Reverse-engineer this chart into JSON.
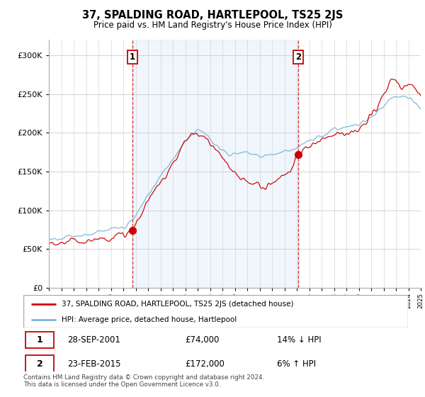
{
  "title": "37, SPALDING ROAD, HARTLEPOOL, TS25 2JS",
  "subtitle": "Price paid vs. HM Land Registry's House Price Index (HPI)",
  "legend_line1": "37, SPALDING ROAD, HARTLEPOOL, TS25 2JS (detached house)",
  "legend_line2": "HPI: Average price, detached house, Hartlepool",
  "footer": "Contains HM Land Registry data © Crown copyright and database right 2024.\nThis data is licensed under the Open Government Licence v3.0.",
  "table_rows": [
    [
      "1",
      "28-SEP-2001",
      "£74,000",
      "14% ↓ HPI"
    ],
    [
      "2",
      "23-FEB-2015",
      "£172,000",
      "6% ↑ HPI"
    ]
  ],
  "hpi_color": "#7ab4d8",
  "price_color": "#cc0000",
  "vline_color": "#cc0000",
  "shade_color": "#ddeeff",
  "ylim": [
    0,
    320000
  ],
  "yticks": [
    0,
    50000,
    100000,
    150000,
    200000,
    250000,
    300000
  ],
  "sale1_year": 2001.75,
  "sale1_price": 74000,
  "sale2_year": 2015.12,
  "sale2_price": 172000,
  "background_color": "#ffffff",
  "grid_color": "#cccccc"
}
